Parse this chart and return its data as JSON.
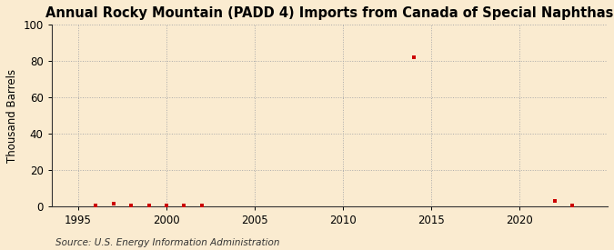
{
  "title": "Annual Rocky Mountain (PADD 4) Imports from Canada of Special Naphthas",
  "ylabel": "Thousand Barrels",
  "source": "Source: U.S. Energy Information Administration",
  "background_color": "#faebd0",
  "plot_background_color": "#faebd0",
  "marker_color": "#cc0000",
  "marker_size": 3.5,
  "xlim": [
    1993.5,
    2025
  ],
  "ylim": [
    0,
    100
  ],
  "yticks": [
    0,
    20,
    40,
    60,
    80,
    100
  ],
  "xticks": [
    1995,
    2000,
    2005,
    2010,
    2015,
    2020
  ],
  "data_points": [
    [
      1996,
      0.5
    ],
    [
      1997,
      1.5
    ],
    [
      1998,
      0.5
    ],
    [
      1999,
      0.5
    ],
    [
      2000,
      0.5
    ],
    [
      2001,
      0.5
    ],
    [
      2002,
      0.5
    ],
    [
      2014,
      82
    ],
    [
      2022,
      3
    ],
    [
      2023,
      0.5
    ]
  ],
  "grid_color": "#aaaaaa",
  "grid_linestyle": ":",
  "grid_linewidth": 0.7,
  "title_fontsize": 10.5,
  "ylabel_fontsize": 8.5,
  "tick_fontsize": 8.5,
  "source_fontsize": 7.5
}
